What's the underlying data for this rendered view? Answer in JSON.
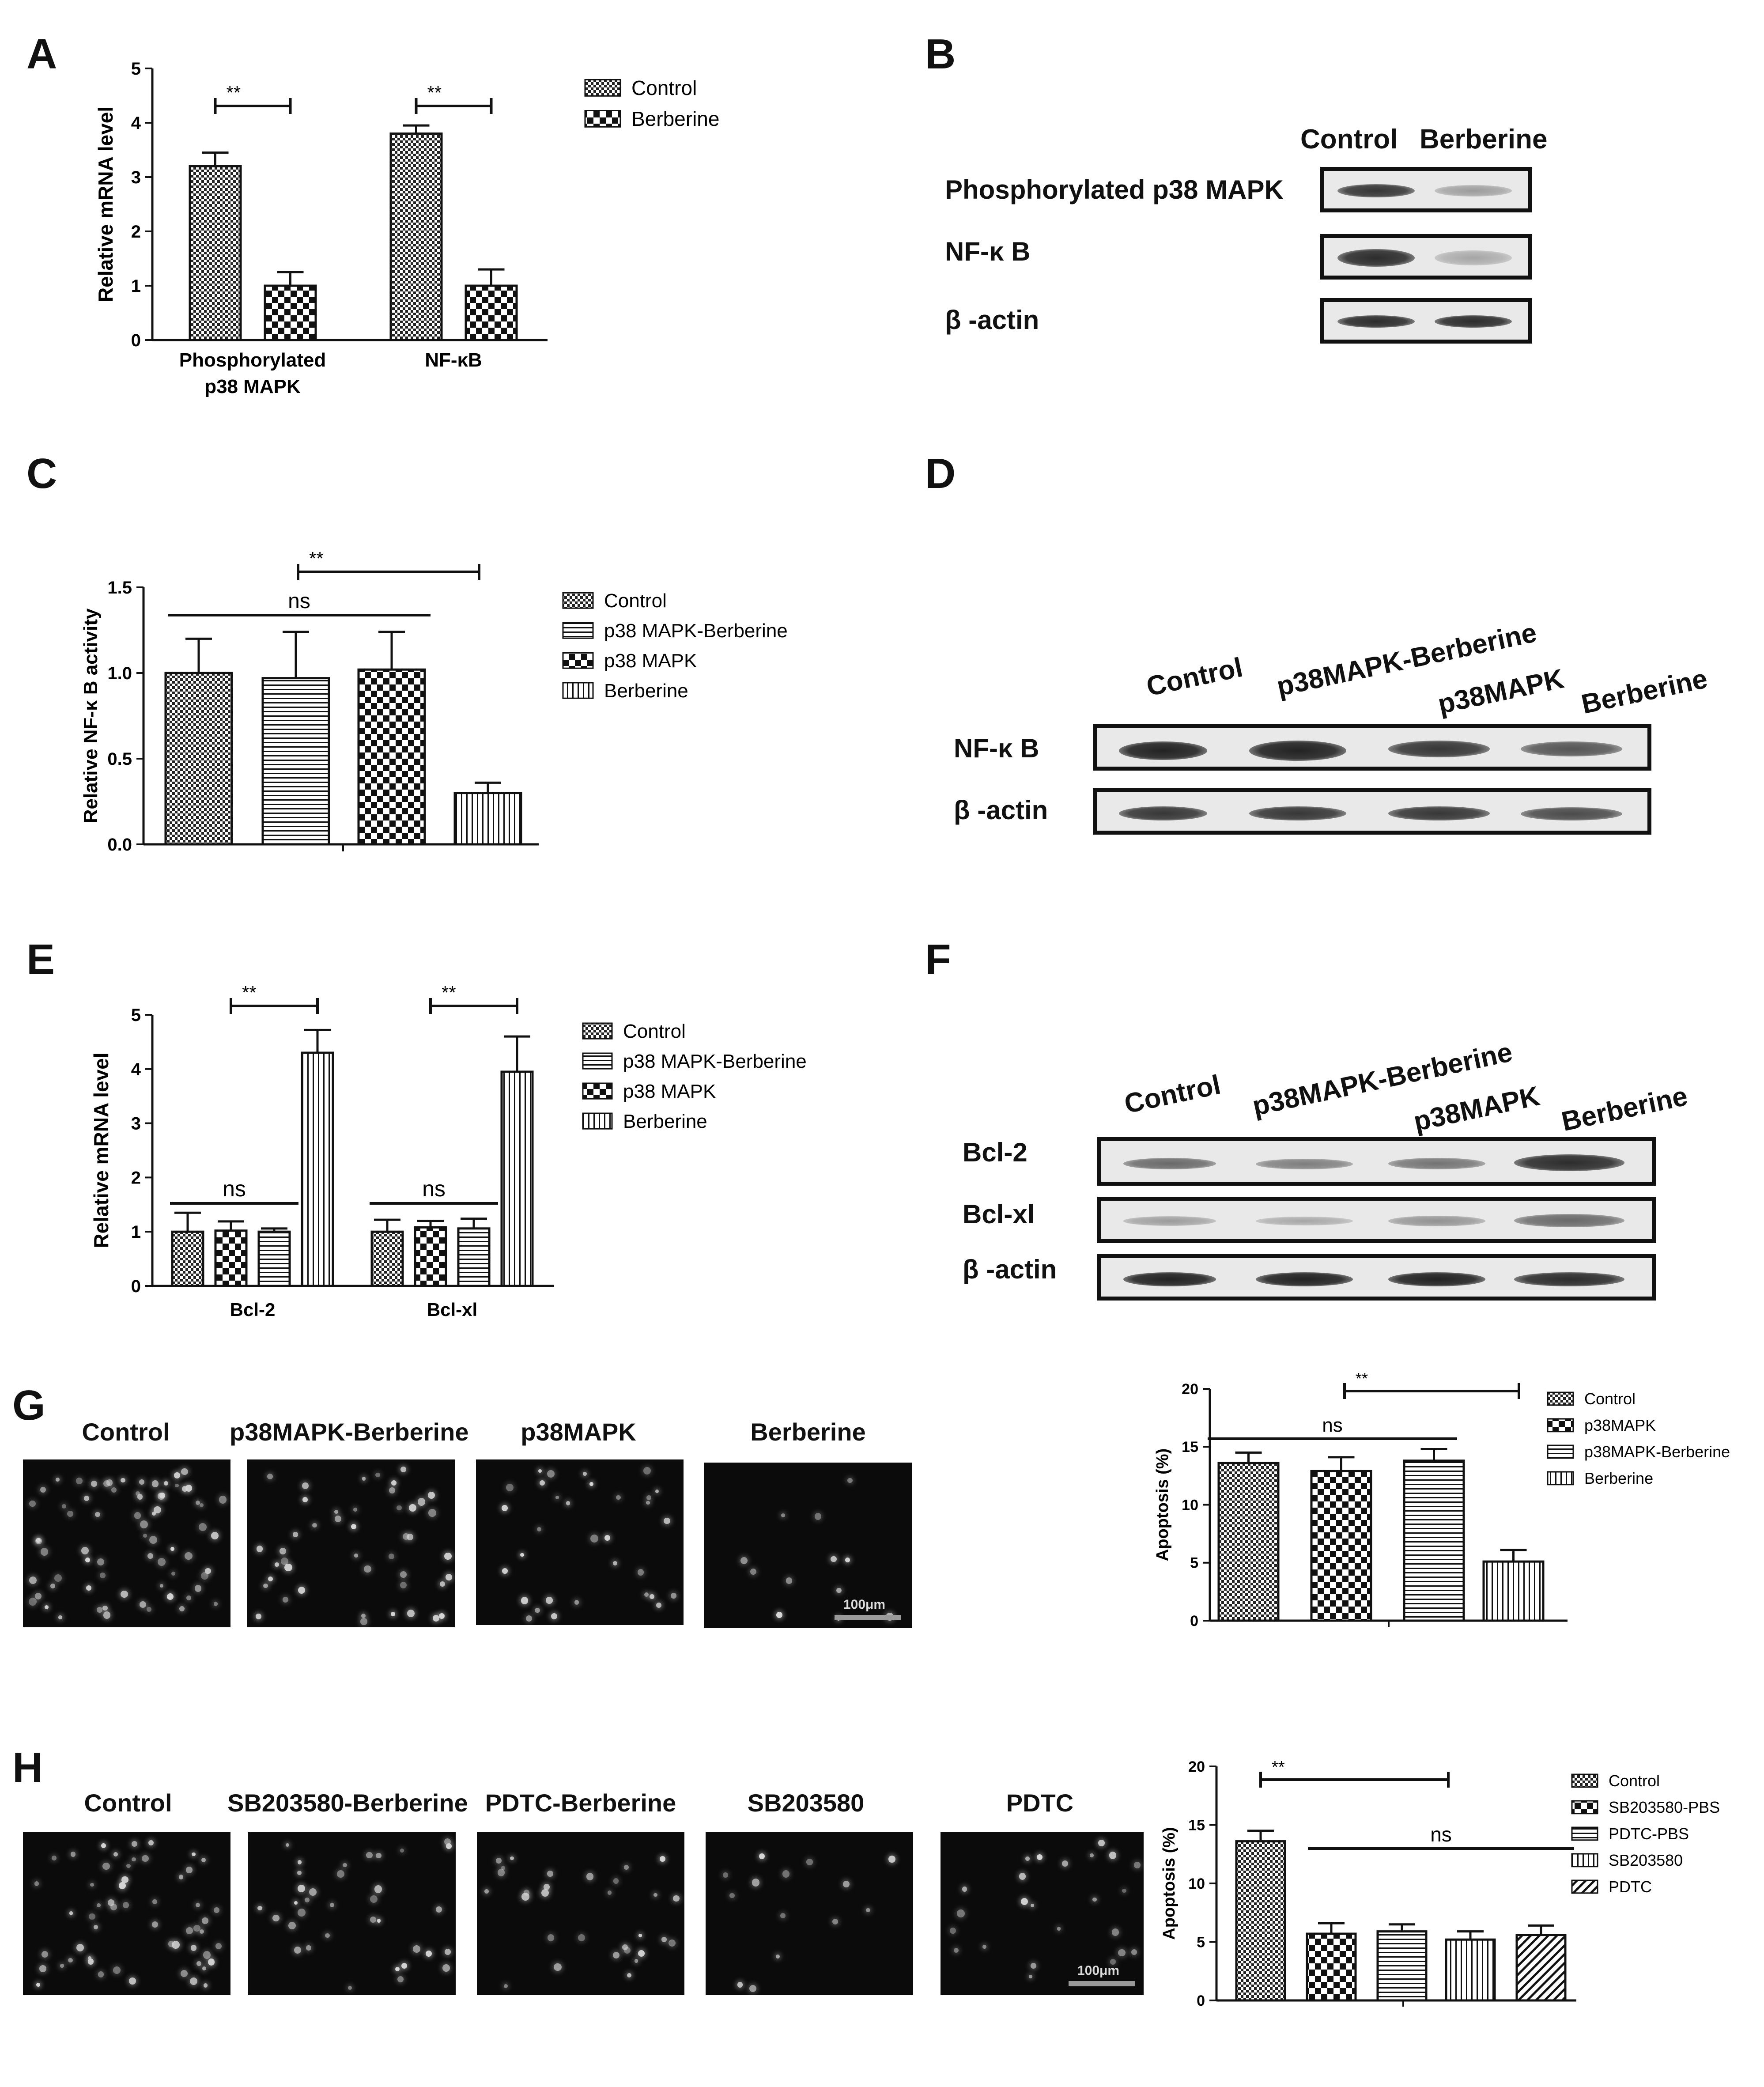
{
  "panels": {
    "A": "A",
    "B": "B",
    "C": "C",
    "D": "D",
    "E": "E",
    "F": "F",
    "G": "G",
    "H": "H"
  },
  "chart_data": [
    {
      "id": "A",
      "type": "bar",
      "ylabel": "Relative mRNA level",
      "ylim": [
        0,
        5
      ],
      "yticks": [
        "0",
        "1",
        "2",
        "3",
        "4",
        "5"
      ],
      "categories": [
        "Phosphorylated p38 MAPK",
        "NF-κB"
      ],
      "category_lines": [
        [
          "Phosphorylated",
          "p38 MAPK"
        ],
        [
          "NF-κB"
        ]
      ],
      "series": [
        {
          "name": "Control",
          "pattern": "fine-check",
          "values": [
            3.2,
            3.8
          ],
          "errors": [
            0.25,
            0.15
          ]
        },
        {
          "name": "Berberine",
          "pattern": "coarse-check",
          "values": [
            1.0,
            1.0
          ],
          "errors": [
            0.25,
            0.3
          ]
        }
      ],
      "annotations": [
        "**",
        "**"
      ]
    },
    {
      "id": "C",
      "type": "bar",
      "ylabel": "Relative NF-κ B activity",
      "ylim": [
        0,
        1.5
      ],
      "yticks": [
        "0.0",
        "0.5",
        "1.0",
        "1.5"
      ],
      "series": [
        {
          "name": "Control",
          "pattern": "fine-check",
          "value": 1.0,
          "error": 0.2
        },
        {
          "name": "p38 MAPK-Berberine",
          "pattern": "horizontal",
          "value": 0.97,
          "error": 0.27
        },
        {
          "name": "p38 MAPK",
          "pattern": "coarse-check",
          "value": 1.02,
          "error": 0.22
        },
        {
          "name": "Berberine",
          "pattern": "vertical",
          "value": 0.3,
          "error": 0.06
        }
      ],
      "annotations": [
        "**",
        "ns"
      ]
    },
    {
      "id": "E",
      "type": "bar",
      "ylabel": "Relative mRNA level",
      "ylim": [
        0,
        5
      ],
      "yticks": [
        "0",
        "1",
        "2",
        "3",
        "4",
        "5"
      ],
      "categories": [
        "Bcl-2",
        "Bcl-xl"
      ],
      "series": [
        {
          "name": "Control",
          "pattern": "fine-check",
          "values": [
            1.0,
            1.0
          ],
          "errors": [
            0.35,
            0.22
          ]
        },
        {
          "name": "p38 MAPK-Berberine",
          "pattern": "coarse-check",
          "values": [
            1.02,
            1.08
          ],
          "errors": [
            0.17,
            0.12
          ]
        },
        {
          "name": "p38 MAPK",
          "pattern": "horizontal",
          "values": [
            1.0,
            1.06
          ],
          "errors": [
            0.06,
            0.18
          ]
        },
        {
          "name": "Berberine",
          "pattern": "vertical",
          "values": [
            4.3,
            3.95
          ],
          "errors": [
            0.42,
            0.65
          ]
        }
      ],
      "legend_patterns": [
        "fine-check",
        "horizontal",
        "coarse-check",
        "vertical"
      ],
      "annotations": [
        "**",
        "ns",
        "**",
        "ns"
      ]
    },
    {
      "id": "G",
      "type": "bar",
      "ylabel": "Apoptosis (%)",
      "ylim": [
        0,
        20
      ],
      "yticks": [
        "0",
        "5",
        "10",
        "15",
        "20"
      ],
      "series": [
        {
          "name": "Control",
          "pattern": "fine-check",
          "value": 13.6,
          "error": 0.9
        },
        {
          "name": "p38MAPK",
          "pattern": "coarse-check",
          "value": 12.9,
          "error": 1.2
        },
        {
          "name": "p38MAPK-Berberine",
          "pattern": "horizontal",
          "value": 13.8,
          "error": 1.0
        },
        {
          "name": "Berberine",
          "pattern": "vertical",
          "value": 5.1,
          "error": 1.0
        }
      ],
      "annotations": [
        "**",
        "ns"
      ]
    },
    {
      "id": "H",
      "type": "bar",
      "ylabel": "Apoptosis (%)",
      "ylim": [
        0,
        20
      ],
      "yticks": [
        "0",
        "5",
        "10",
        "15",
        "20"
      ],
      "series": [
        {
          "name": "Control",
          "pattern": "fine-check",
          "value": 13.6,
          "error": 0.9
        },
        {
          "name": "SB203580-PBS",
          "pattern": "coarse-check",
          "value": 5.7,
          "error": 0.9
        },
        {
          "name": "PDTC-PBS",
          "pattern": "horizontal",
          "value": 5.9,
          "error": 0.6
        },
        {
          "name": "SB203580",
          "pattern": "vertical",
          "value": 5.2,
          "error": 0.7
        },
        {
          "name": "PDTC",
          "pattern": "diagonal",
          "value": 5.6,
          "error": 0.8
        }
      ],
      "annotations": [
        "**",
        "ns"
      ]
    }
  ],
  "blot_B": {
    "headers": [
      "Control",
      "Berberine"
    ],
    "rows": [
      {
        "label": "Phosphorylated p38 MAPK",
        "intensity": [
          0.85,
          0.35
        ]
      },
      {
        "label": "NF-κ B",
        "intensity": [
          0.9,
          0.3
        ]
      },
      {
        "label": "β -actin",
        "intensity": [
          0.9,
          0.9
        ]
      }
    ]
  },
  "blot_D": {
    "headers": [
      "Control",
      "p38MAPK-Berberine",
      "p38MAPK",
      "Berberine"
    ],
    "rows": [
      {
        "label": "NF-κ B",
        "intensity": [
          0.95,
          0.95,
          0.85,
          0.7
        ]
      },
      {
        "label": "β -actin",
        "intensity": [
          0.85,
          0.85,
          0.85,
          0.75
        ]
      }
    ]
  },
  "blot_F": {
    "headers": [
      "Control",
      "p38MAPK-Berberine",
      "p38MAPK",
      "Berberine"
    ],
    "rows": [
      {
        "label": "Bcl-2",
        "intensity": [
          0.6,
          0.5,
          0.55,
          0.9
        ]
      },
      {
        "label": "Bcl-xl",
        "intensity": [
          0.35,
          0.3,
          0.4,
          0.6
        ]
      },
      {
        "label": "β -actin",
        "intensity": [
          0.95,
          0.95,
          0.95,
          0.9
        ]
      }
    ]
  },
  "micro_G": {
    "labels": [
      "Control",
      "p38MAPK-Berberine",
      "p38MAPK",
      "Berberine"
    ],
    "scale": "100μm"
  },
  "micro_H": {
    "labels": [
      "Control",
      "SB203580-Berberine",
      "PDTC-Berberine",
      "SB203580",
      "PDTC"
    ],
    "scale": "100μm"
  }
}
